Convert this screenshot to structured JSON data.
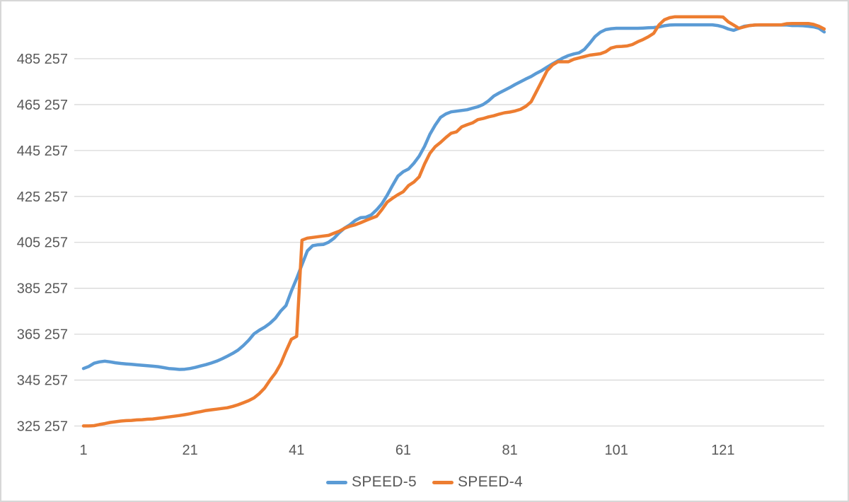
{
  "chart_data": {
    "type": "line",
    "title": "",
    "xlabel": "",
    "ylabel": "",
    "grid": true,
    "legend_position": "bottom",
    "x_count": 140,
    "x_tick_positions": [
      1,
      21,
      41,
      61,
      81,
      101,
      121
    ],
    "x_tick_labels": [
      "1",
      "21",
      "41",
      "61",
      "81",
      "101",
      "121"
    ],
    "y_tick_values": [
      325257,
      345257,
      365257,
      385257,
      405257,
      425257,
      445257,
      465257,
      485257
    ],
    "y_tick_labels": [
      "325 257",
      "345 257",
      "365 257",
      "385 257",
      "405 257",
      "425 257",
      "445 257",
      "465 257",
      "485 257"
    ],
    "y_axis": {
      "min": 325257,
      "max": 505257,
      "step": 20000
    },
    "series": [
      {
        "name": "SPEED-5",
        "color": "#5B9BD5",
        "values": [
          350300,
          351200,
          352600,
          353200,
          353500,
          353200,
          352800,
          352500,
          352300,
          352100,
          351900,
          351700,
          351500,
          351300,
          351100,
          350700,
          350300,
          350100,
          349900,
          350000,
          350300,
          350800,
          351400,
          352000,
          352700,
          353500,
          354500,
          355700,
          356900,
          358300,
          360300,
          362600,
          365400,
          367000,
          368300,
          370000,
          372200,
          375300,
          377700,
          384000,
          389500,
          395500,
          401500,
          403800,
          404200,
          404300,
          405300,
          407000,
          409500,
          411500,
          412900,
          414800,
          416000,
          416200,
          417200,
          419400,
          422100,
          425800,
          430100,
          434100,
          436000,
          437200,
          439700,
          442800,
          447100,
          452300,
          456300,
          459700,
          461200,
          462100,
          462400,
          462700,
          463000,
          463700,
          464300,
          465300,
          466900,
          469000,
          470300,
          471500,
          472700,
          474000,
          475200,
          476400,
          477500,
          478900,
          480100,
          481600,
          483000,
          484300,
          485600,
          486600,
          487300,
          487800,
          489300,
          492000,
          494900,
          496800,
          497900,
          498300,
          498500,
          498500,
          498500,
          498500,
          498500,
          498600,
          498700,
          498800,
          499100,
          499600,
          499900,
          500000,
          500000,
          500000,
          500000,
          500000,
          500000,
          500000,
          500000,
          499700,
          499100,
          498200,
          497600,
          498500,
          499400,
          499700,
          499900,
          499900,
          499900,
          499900,
          499900,
          499900,
          499900,
          499700,
          499700,
          499600,
          499400,
          499100,
          498500,
          496900
        ]
      },
      {
        "name": "SPEED-4",
        "color": "#ED7D31",
        "values": [
          325300,
          325300,
          325400,
          325900,
          326300,
          326800,
          327100,
          327400,
          327600,
          327700,
          327900,
          328000,
          328200,
          328300,
          328600,
          328900,
          329200,
          329500,
          329800,
          330200,
          330600,
          331100,
          331500,
          332000,
          332300,
          332600,
          332900,
          333200,
          333800,
          334500,
          335400,
          336300,
          337500,
          339400,
          341800,
          345200,
          348300,
          352300,
          357800,
          363000,
          364300,
          406200,
          407100,
          407400,
          407700,
          408000,
          408300,
          409200,
          410100,
          411400,
          412300,
          412900,
          413800,
          414800,
          415700,
          416600,
          419500,
          422800,
          424500,
          426000,
          427300,
          430000,
          431500,
          433800,
          439400,
          444000,
          446900,
          448800,
          450900,
          452800,
          453400,
          455600,
          456500,
          457300,
          458700,
          459200,
          459900,
          460400,
          461100,
          461700,
          462000,
          462500,
          463200,
          464500,
          466500,
          471000,
          475500,
          480000,
          482500,
          483900,
          483900,
          483900,
          485000,
          485600,
          486200,
          486800,
          487100,
          487400,
          488300,
          489900,
          490500,
          490600,
          490800,
          491400,
          492600,
          493600,
          494800,
          496300,
          500000,
          502200,
          503100,
          503500,
          503500,
          503500,
          503500,
          503500,
          503500,
          503500,
          503500,
          503500,
          503400,
          501300,
          499900,
          498500,
          499100,
          499700,
          499900,
          500000,
          500000,
          500000,
          500000,
          500000,
          500500,
          500600,
          500600,
          500600,
          500600,
          500200,
          499400,
          498200
        ]
      }
    ],
    "colors": {
      "grid": "#D9D9D9",
      "axis_text": "#595959",
      "background": "#FFFFFF",
      "border": "#D7D7D7"
    }
  }
}
